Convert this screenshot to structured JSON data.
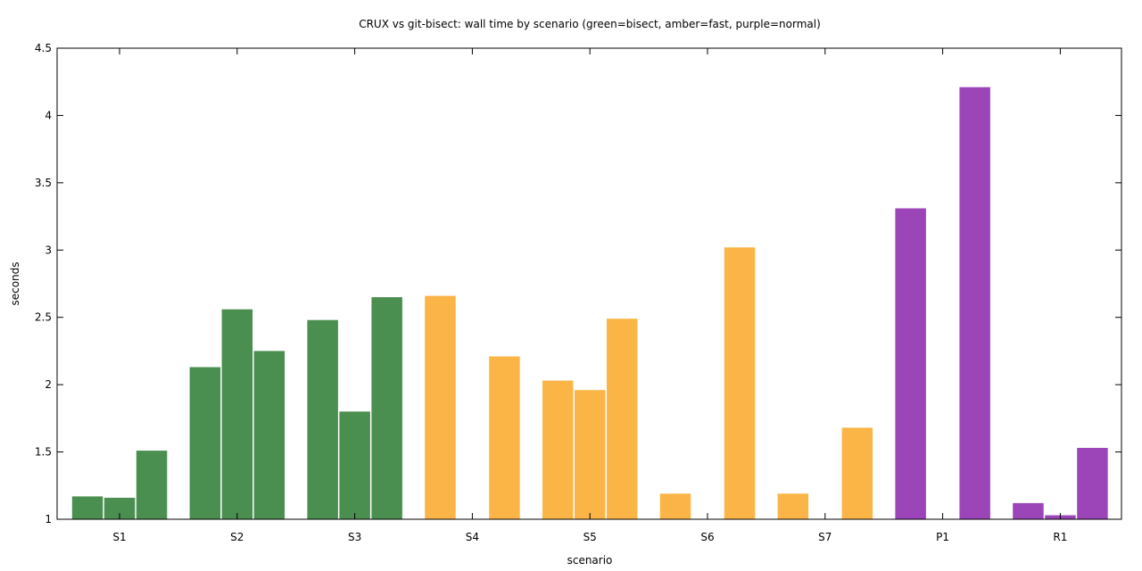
{
  "chart_data": {
    "type": "bar",
    "title": "CRUX vs git-bisect: wall time by scenario (green=bisect, amber=fast, purple=normal)",
    "xlabel": "scenario",
    "ylabel": "seconds",
    "ylim": [
      1,
      4.5
    ],
    "yticks": [
      "1",
      "1.5",
      "2",
      "2.5",
      "3",
      "3.5",
      "4",
      "4.5"
    ],
    "categories": [
      "S1",
      "S2",
      "S3",
      "S4",
      "S5",
      "S6",
      "S7",
      "P1",
      "R1"
    ],
    "groups": [
      {
        "category": "S1",
        "mode": "bisect",
        "values": [
          1.17,
          1.16,
          1.51
        ]
      },
      {
        "category": "S2",
        "mode": "bisect",
        "values": [
          2.13,
          2.56,
          2.25
        ]
      },
      {
        "category": "S3",
        "mode": "bisect",
        "values": [
          2.48,
          1.8,
          2.65
        ]
      },
      {
        "category": "S4",
        "mode": "fast",
        "values": [
          2.66,
          null,
          2.21
        ]
      },
      {
        "category": "S5",
        "mode": "fast",
        "values": [
          2.03,
          1.96,
          2.49
        ]
      },
      {
        "category": "S6",
        "mode": "fast",
        "values": [
          1.19,
          null,
          3.02
        ]
      },
      {
        "category": "S7",
        "mode": "fast",
        "values": [
          1.19,
          null,
          1.68
        ]
      },
      {
        "category": "P1",
        "mode": "normal",
        "values": [
          3.31,
          null,
          4.21
        ]
      },
      {
        "category": "R1",
        "mode": "normal",
        "values": [
          1.12,
          1.03,
          1.53
        ]
      }
    ],
    "colors": {
      "bisect": "#4a8f50",
      "fast": "#fbb547",
      "normal": "#9c45b8"
    },
    "grid": false,
    "legend": "none"
  }
}
